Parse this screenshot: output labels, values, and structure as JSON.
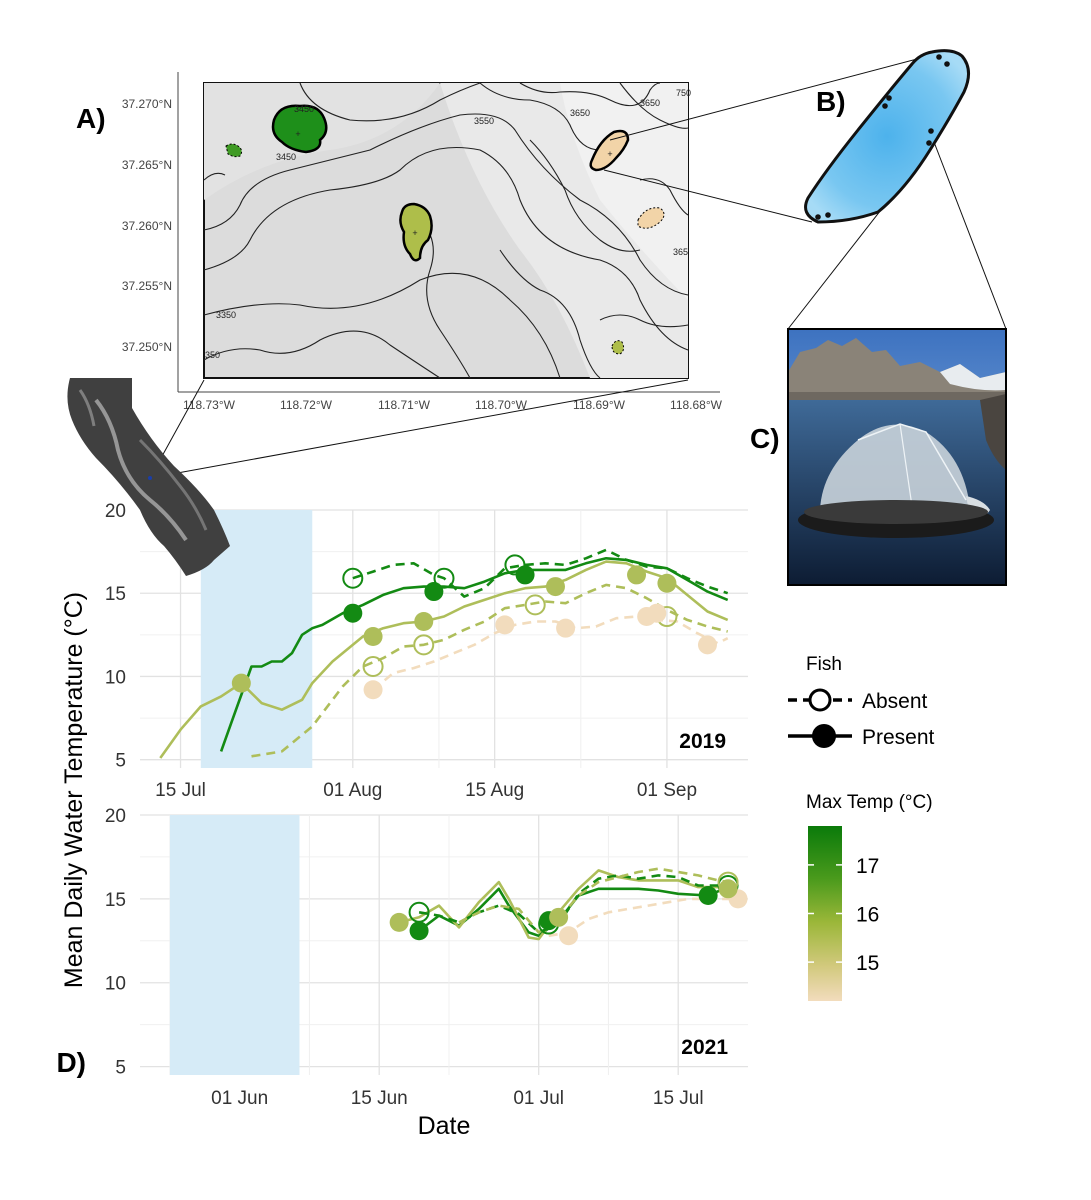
{
  "panel_labels": {
    "a": "A)",
    "b": "B)",
    "c": "C)",
    "d": "D)"
  },
  "map": {
    "lat_ticks": [
      "37.270°N",
      "37.265°N",
      "37.260°N",
      "37.255°N",
      "37.250°N"
    ],
    "lon_ticks": [
      "118.73°W",
      "118.72°W",
      "118.71°W",
      "118.70°W",
      "118.69°W",
      "118.68°W"
    ],
    "contour_labels": [
      "3450",
      "3450",
      "3550",
      "3650",
      "3650",
      "3350",
      "750",
      "365",
      "350"
    ]
  },
  "legend": {
    "fish_title": "Fish",
    "absent": "Absent",
    "present": "Present",
    "temp_title": "Max Temp (°C)",
    "temp_ticks": [
      "17",
      "16",
      "15"
    ],
    "temp_range": [
      14.2,
      17.8
    ]
  },
  "colors": {
    "shade": "#d6ebf7",
    "dark_green": "#138a13",
    "mid_green": "#86a92c",
    "olive": "#aebe5a",
    "light_olive": "#cdd08a",
    "tan": "#f2dcbd",
    "lake_blue": "#6dc1ec"
  },
  "chart_data": [
    {
      "type": "line",
      "year_label": "2019",
      "ylabel": "Mean Daily Water Temperature (°C)",
      "xlabel": "",
      "x_ticks": [
        "15 Jul",
        "01 Aug",
        "15 Aug",
        "01 Sep"
      ],
      "x_tick_dates": [
        "2019-07-15",
        "2019-08-01",
        "2019-08-15",
        "2019-09-01"
      ],
      "xlim": [
        "2019-07-11",
        "2019-09-09"
      ],
      "ylim": [
        4.5,
        20
      ],
      "y_ticks": [
        "5",
        "10",
        "15",
        "20"
      ],
      "shaded_range": [
        "2019-07-17",
        "2019-07-28"
      ],
      "series": [
        {
          "fish": "Present",
          "color": "#138a13",
          "x": [
            "2019-07-19",
            "2019-07-20",
            "2019-07-22",
            "2019-07-23",
            "2019-07-24",
            "2019-07-25",
            "2019-07-26",
            "2019-07-27",
            "2019-07-28",
            "2019-07-29",
            "2019-07-31",
            "2019-08-02",
            "2019-08-04",
            "2019-08-06",
            "2019-08-08",
            "2019-08-10",
            "2019-08-12",
            "2019-08-14",
            "2019-08-16",
            "2019-08-18",
            "2019-08-20",
            "2019-08-22",
            "2019-08-24",
            "2019-08-26",
            "2019-08-28",
            "2019-08-30",
            "2019-09-01",
            "2019-09-03",
            "2019-09-05",
            "2019-09-07"
          ],
          "y": [
            5.5,
            7.2,
            10.6,
            10.6,
            10.9,
            10.9,
            11.4,
            12.5,
            12.9,
            13.1,
            13.8,
            14.3,
            14.9,
            15.3,
            15.4,
            15.4,
            15.3,
            15.7,
            16.2,
            16.4,
            16.4,
            16.4,
            16.8,
            17.1,
            17.0,
            16.7,
            16.5,
            15.8,
            15.1,
            14.6
          ],
          "markers_x": [
            "2019-08-01",
            "2019-08-09",
            "2019-08-18"
          ],
          "markers_y": [
            13.8,
            15.1,
            16.1
          ]
        },
        {
          "fish": "Present",
          "color": "#aebe5a",
          "x": [
            "2019-07-13",
            "2019-07-15",
            "2019-07-17",
            "2019-07-19",
            "2019-07-21",
            "2019-07-23",
            "2019-07-25",
            "2019-07-27",
            "2019-07-28",
            "2019-07-30",
            "2019-08-02",
            "2019-08-04",
            "2019-08-06",
            "2019-08-08",
            "2019-08-10",
            "2019-08-12",
            "2019-08-14",
            "2019-08-16",
            "2019-08-18",
            "2019-08-20",
            "2019-08-22",
            "2019-08-24",
            "2019-08-26",
            "2019-08-28",
            "2019-08-30",
            "2019-09-01",
            "2019-09-03",
            "2019-09-05",
            "2019-09-07"
          ],
          "y": [
            5.1,
            6.8,
            8.2,
            8.8,
            9.6,
            8.4,
            8.0,
            8.6,
            9.6,
            10.9,
            12.4,
            12.9,
            13.2,
            13.3,
            13.6,
            14.2,
            14.6,
            15.0,
            15.3,
            15.4,
            15.8,
            16.4,
            16.9,
            16.8,
            16.3,
            15.9,
            14.9,
            13.9,
            13.4
          ],
          "markers_x": [
            "2019-07-21",
            "2019-08-03",
            "2019-08-08",
            "2019-08-21",
            "2019-08-29",
            "2019-09-01"
          ],
          "markers_y": [
            9.6,
            12.4,
            13.3,
            15.4,
            16.1,
            15.6
          ]
        },
        {
          "fish": "Absent",
          "color": "#138a13",
          "x": [
            "2019-08-01",
            "2019-08-03",
            "2019-08-05",
            "2019-08-07",
            "2019-08-09",
            "2019-08-10",
            "2019-08-12",
            "2019-08-14",
            "2019-08-16",
            "2019-08-18",
            "2019-08-20",
            "2019-08-22",
            "2019-08-24",
            "2019-08-26",
            "2019-08-28",
            "2019-08-30",
            "2019-09-01",
            "2019-09-03",
            "2019-09-05",
            "2019-09-07"
          ],
          "y": [
            15.9,
            16.3,
            16.7,
            16.8,
            16.1,
            15.9,
            14.8,
            15.3,
            16.5,
            16.7,
            16.8,
            16.7,
            17.1,
            17.6,
            17.0,
            16.6,
            16.5,
            15.9,
            15.4,
            15.0
          ],
          "markers_x": [
            "2019-08-01",
            "2019-08-10",
            "2019-08-17"
          ],
          "markers_y": [
            15.9,
            15.9,
            16.7
          ]
        },
        {
          "fish": "Absent",
          "color": "#aebe5a",
          "x": [
            "2019-07-22",
            "2019-07-25",
            "2019-07-28",
            "2019-07-31",
            "2019-08-02",
            "2019-08-04",
            "2019-08-06",
            "2019-08-08",
            "2019-08-10",
            "2019-08-12",
            "2019-08-14",
            "2019-08-16",
            "2019-08-18",
            "2019-08-20",
            "2019-08-22",
            "2019-08-24",
            "2019-08-26",
            "2019-08-28",
            "2019-08-30",
            "2019-09-01",
            "2019-09-03",
            "2019-09-05",
            "2019-09-07"
          ],
          "y": [
            5.2,
            5.5,
            7.0,
            9.4,
            10.6,
            11.1,
            11.8,
            11.9,
            12.2,
            12.8,
            13.3,
            14.1,
            14.3,
            14.5,
            14.4,
            15.0,
            15.5,
            15.3,
            14.7,
            14.0,
            13.4,
            13.0,
            12.7
          ],
          "markers_x": [
            "2019-08-03",
            "2019-08-08",
            "2019-08-19",
            "2019-09-01"
          ],
          "markers_y": [
            10.6,
            11.9,
            14.3,
            13.6
          ]
        },
        {
          "fish": "Absent",
          "color": "#f2dcbd",
          "x": [
            "2019-08-03",
            "2019-08-05",
            "2019-08-07",
            "2019-08-09",
            "2019-08-11",
            "2019-08-13",
            "2019-08-15",
            "2019-08-17",
            "2019-08-19",
            "2019-08-21",
            "2019-08-23",
            "2019-08-25",
            "2019-08-27",
            "2019-08-29",
            "2019-08-31",
            "2019-09-02",
            "2019-09-04",
            "2019-09-06",
            "2019-09-07"
          ],
          "y": [
            9.2,
            10.2,
            10.5,
            10.9,
            11.4,
            11.9,
            12.6,
            13.1,
            13.3,
            13.3,
            12.9,
            13.0,
            13.5,
            13.6,
            13.4,
            13.3,
            12.6,
            12.0,
            12.3
          ],
          "markers_x": [
            "2019-08-03",
            "2019-08-16",
            "2019-08-22",
            "2019-08-30",
            "2019-08-31",
            "2019-09-05"
          ],
          "markers_y": [
            9.2,
            13.1,
            12.9,
            13.6,
            13.8,
            11.9
          ]
        }
      ]
    },
    {
      "type": "line",
      "year_label": "2021",
      "ylabel": "Mean Daily Water Temperature (°C)",
      "xlabel": "Date",
      "x_ticks": [
        "01 Jun",
        "15 Jun",
        "01 Jul",
        "15 Jul"
      ],
      "x_tick_dates": [
        "2021-06-01",
        "2021-06-15",
        "2021-07-01",
        "2021-07-15"
      ],
      "xlim": [
        "2021-05-22",
        "2021-07-22"
      ],
      "ylim": [
        4.5,
        20
      ],
      "y_ticks": [
        "5",
        "10",
        "15",
        "20"
      ],
      "shaded_range": [
        "2021-05-25",
        "2021-06-07"
      ],
      "series": [
        {
          "fish": "Present",
          "color": "#138a13",
          "x": [
            "2021-06-19",
            "2021-06-21",
            "2021-06-23",
            "2021-06-25",
            "2021-06-27",
            "2021-06-28",
            "2021-06-30",
            "2021-07-01",
            "2021-07-03",
            "2021-07-05",
            "2021-07-07",
            "2021-07-09",
            "2021-07-11",
            "2021-07-13",
            "2021-07-15",
            "2021-07-18",
            "2021-07-20"
          ],
          "y": [
            13.1,
            14.0,
            13.4,
            14.4,
            15.6,
            14.6,
            13.0,
            12.8,
            13.7,
            15.2,
            15.6,
            15.6,
            15.6,
            15.5,
            15.3,
            15.2,
            15.7
          ],
          "markers_x": [
            "2021-06-19",
            "2021-07-02",
            "2021-07-18"
          ],
          "markers_y": [
            13.1,
            13.7,
            15.2
          ]
        },
        {
          "fish": "Present",
          "color": "#aebe5a",
          "x": [
            "2021-06-17",
            "2021-06-19",
            "2021-06-21",
            "2021-06-23",
            "2021-06-25",
            "2021-06-26",
            "2021-06-27",
            "2021-06-28",
            "2021-06-30",
            "2021-07-01",
            "2021-07-03",
            "2021-07-05",
            "2021-07-07",
            "2021-07-09",
            "2021-07-11",
            "2021-07-13",
            "2021-07-15",
            "2021-07-17",
            "2021-07-19",
            "2021-07-20"
          ],
          "y": [
            13.6,
            13.9,
            14.6,
            13.3,
            14.8,
            15.4,
            16.0,
            15.0,
            12.7,
            12.6,
            14.2,
            15.6,
            16.7,
            16.3,
            16.1,
            16.1,
            16.1,
            15.7,
            15.7,
            15.9
          ],
          "markers_x": [
            "2021-06-17",
            "2021-07-03",
            "2021-07-20"
          ],
          "markers_y": [
            13.6,
            13.9,
            15.6
          ]
        },
        {
          "fish": "Absent",
          "color": "#138a13",
          "x": [
            "2021-06-19",
            "2021-06-21",
            "2021-06-23",
            "2021-06-25",
            "2021-06-27",
            "2021-06-29",
            "2021-07-01",
            "2021-07-03",
            "2021-07-05",
            "2021-07-07",
            "2021-07-09",
            "2021-07-11",
            "2021-07-13",
            "2021-07-15",
            "2021-07-17",
            "2021-07-20"
          ],
          "y": [
            14.2,
            14.0,
            13.6,
            14.2,
            14.6,
            14.1,
            13.0,
            13.5,
            15.3,
            16.2,
            16.4,
            16.2,
            16.4,
            16.3,
            15.8,
            15.8
          ],
          "markers_x": [
            "2021-06-19",
            "2021-07-02",
            "2021-07-20"
          ],
          "markers_y": [
            14.2,
            13.5,
            15.8
          ]
        },
        {
          "fish": "Absent",
          "color": "#aebe5a",
          "x": [
            "2021-06-23",
            "2021-06-25",
            "2021-06-27",
            "2021-06-29",
            "2021-07-01",
            "2021-07-03",
            "2021-07-05",
            "2021-07-07",
            "2021-07-09",
            "2021-07-11",
            "2021-07-13",
            "2021-07-15",
            "2021-07-17",
            "2021-07-19",
            "2021-07-20"
          ],
          "y": [
            13.6,
            14.2,
            14.6,
            14.4,
            13.0,
            13.8,
            15.2,
            16.0,
            16.3,
            16.6,
            16.8,
            16.6,
            16.4,
            16.1,
            16.0
          ],
          "markers_x": [
            "2021-07-20"
          ],
          "markers_y": [
            16.0
          ]
        },
        {
          "fish": "Absent",
          "color": "#f2dcbd",
          "x": [
            "2021-07-02",
            "2021-07-04",
            "2021-07-06",
            "2021-07-08",
            "2021-07-10",
            "2021-07-12",
            "2021-07-14",
            "2021-07-16",
            "2021-07-18",
            "2021-07-20",
            "2021-07-21"
          ],
          "y": [
            12.8,
            13.0,
            13.8,
            14.2,
            14.4,
            14.6,
            14.8,
            15.0,
            15.0,
            15.0,
            15.0
          ],
          "markers_x": [
            "2021-07-04",
            "2021-07-21"
          ],
          "markers_y": [
            12.8,
            15.0
          ]
        }
      ]
    }
  ]
}
